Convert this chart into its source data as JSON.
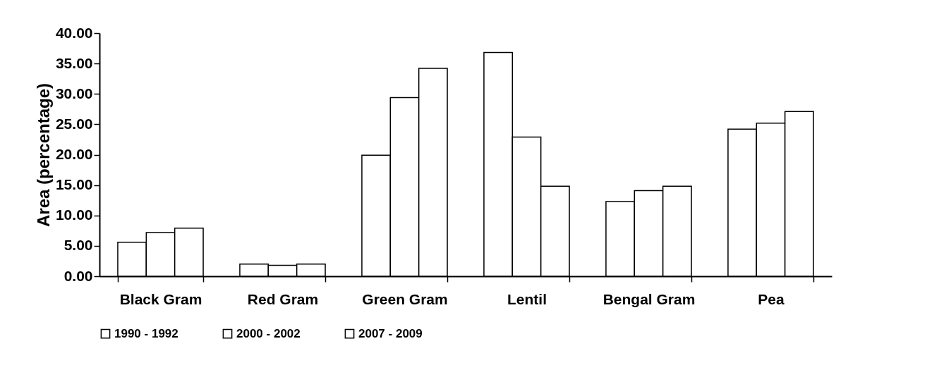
{
  "chart_data": {
    "type": "bar",
    "ylabel": "Area (percentage)",
    "categories": [
      "Black Gram",
      "Red Gram",
      "Green Gram",
      "Lentil",
      "Bengal Gram",
      "Pea"
    ],
    "series": [
      {
        "name": "1990 - 1992",
        "color": "#ffffff",
        "values": [
          5.6,
          2.0,
          19.9,
          36.8,
          12.3,
          24.2
        ]
      },
      {
        "name": "2000 - 2002",
        "color": "#ffffff",
        "values": [
          7.2,
          1.8,
          29.4,
          22.9,
          14.1,
          25.2
        ]
      },
      {
        "name": "2007 - 2009",
        "color": "#ffffff",
        "values": [
          7.9,
          2.0,
          34.2,
          14.8,
          14.8,
          27.1
        ]
      }
    ],
    "ylim": [
      0,
      40
    ],
    "yticks": [
      {
        "value": 0,
        "label": "0.00"
      },
      {
        "value": 5,
        "label": "5.00"
      },
      {
        "value": 10,
        "label": "10.00"
      },
      {
        "value": 15,
        "label": "15.00"
      },
      {
        "value": 20,
        "label": "20.00"
      },
      {
        "value": 25,
        "label": "25.00"
      },
      {
        "value": 30,
        "label": "30.00"
      },
      {
        "value": 35,
        "label": "35.00"
      },
      {
        "value": 40,
        "label": "40.00"
      }
    ],
    "grid": false,
    "legend": "bottom"
  }
}
